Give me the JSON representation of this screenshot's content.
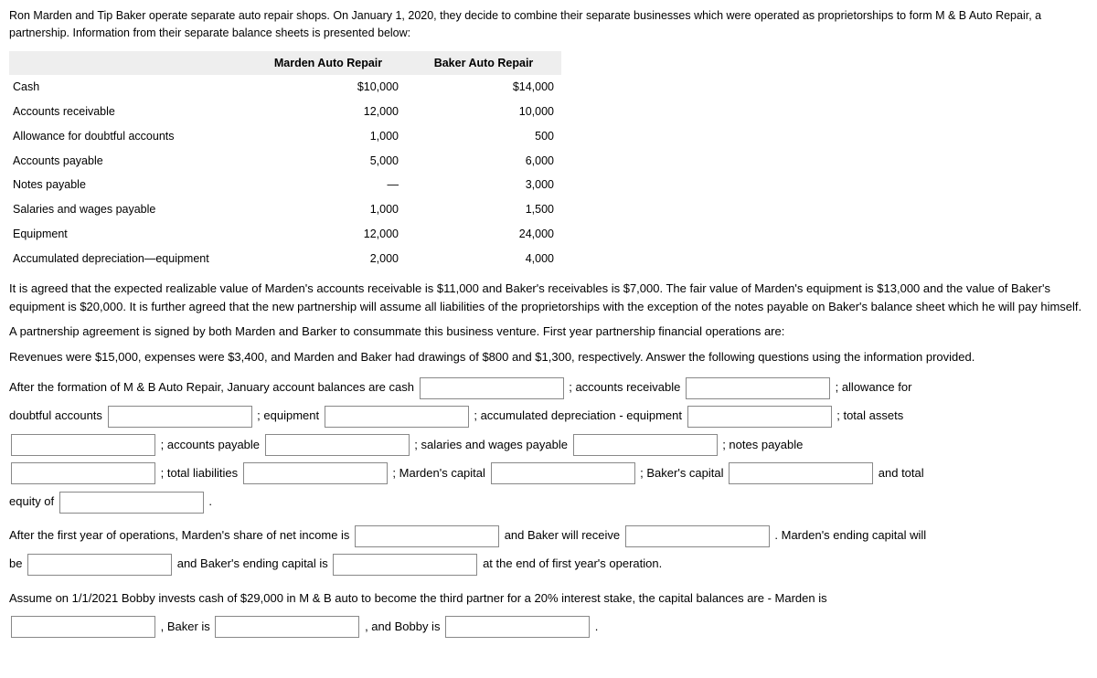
{
  "intro": "Ron Marden and Tip Baker operate separate auto repair shops. On January 1, 2020, they decide to combine their separate businesses which were operated as proprietorships to form M & B Auto Repair, a partnership. Information from their separate balance sheets is presented below:",
  "table": {
    "headers": {
      "col1": "",
      "col2": "Marden Auto Repair",
      "col3": "Baker Auto Repair"
    },
    "rows": [
      {
        "label": "Cash",
        "marden": "$10,000",
        "baker": "$14,000"
      },
      {
        "label": "Accounts receivable",
        "marden": "12,000",
        "baker": "10,000"
      },
      {
        "label": "Allowance for doubtful accounts",
        "marden": "1,000",
        "baker": "500"
      },
      {
        "label": "Accounts payable",
        "marden": "5,000",
        "baker": "6,000"
      },
      {
        "label": "Notes payable",
        "marden": "—",
        "baker": "3,000"
      },
      {
        "label": "Salaries and wages payable",
        "marden": "1,000",
        "baker": "1,500"
      },
      {
        "label": "Equipment",
        "marden": "12,000",
        "baker": "24,000"
      },
      {
        "label": "Accumulated depreciation—equipment",
        "marden": "2,000",
        "baker": "4,000"
      }
    ]
  },
  "para1": "It is agreed that the expected realizable value of Marden's accounts receivable is $11,000 and Baker's receivables is $7,000. The fair value of Marden's equipment is $13,000 and the value of Baker's equipment is $20,000. It is further agreed that the new partnership will assume all liabilities of the proprietorships with the exception of the notes payable on Baker's balance sheet which he will pay himself.",
  "para2": "A partnership agreement is signed by both Marden and Barker to consummate this business venture. First year partnership financial operations are:",
  "para3": "Revenues were $15,000, expenses were $3,400, and Marden and Baker had drawings of $800 and $1,300, respectively. Answer the following questions using the information provided.",
  "fill": {
    "t1": "After the formation of M & B Auto Repair, January account balances are cash",
    "t2": "; accounts receivable",
    "t3": "; allowance for",
    "t4": "doubtful accounts",
    "t5": "; equipment",
    "t6": "; accumulated depreciation - equipment",
    "t7": "; total assets",
    "t8": "; accounts payable",
    "t9": "; salaries and wages payable",
    "t10": "; notes payable",
    "t11": "; total liabilities",
    "t12": "; Marden's capital",
    "t13": "; Baker's capital",
    "t14": "and total",
    "t15": "equity of",
    "t16": "."
  },
  "fill2": {
    "t1": "After the first year of operations, Marden's share of net income is",
    "t2": "and Baker will receive",
    "t3": ". Marden's ending capital will",
    "t4": "be",
    "t5": "and Baker's ending capital is",
    "t6": "at the end of first year's operation."
  },
  "fill3": {
    "t1": "Assume on 1/1/2021 Bobby invests cash of $29,000 in M & B auto to become the third partner for a 20% interest stake, the capital balances are - Marden is",
    "t2": ", Baker is",
    "t3": ", and Bobby is",
    "t4": "."
  }
}
